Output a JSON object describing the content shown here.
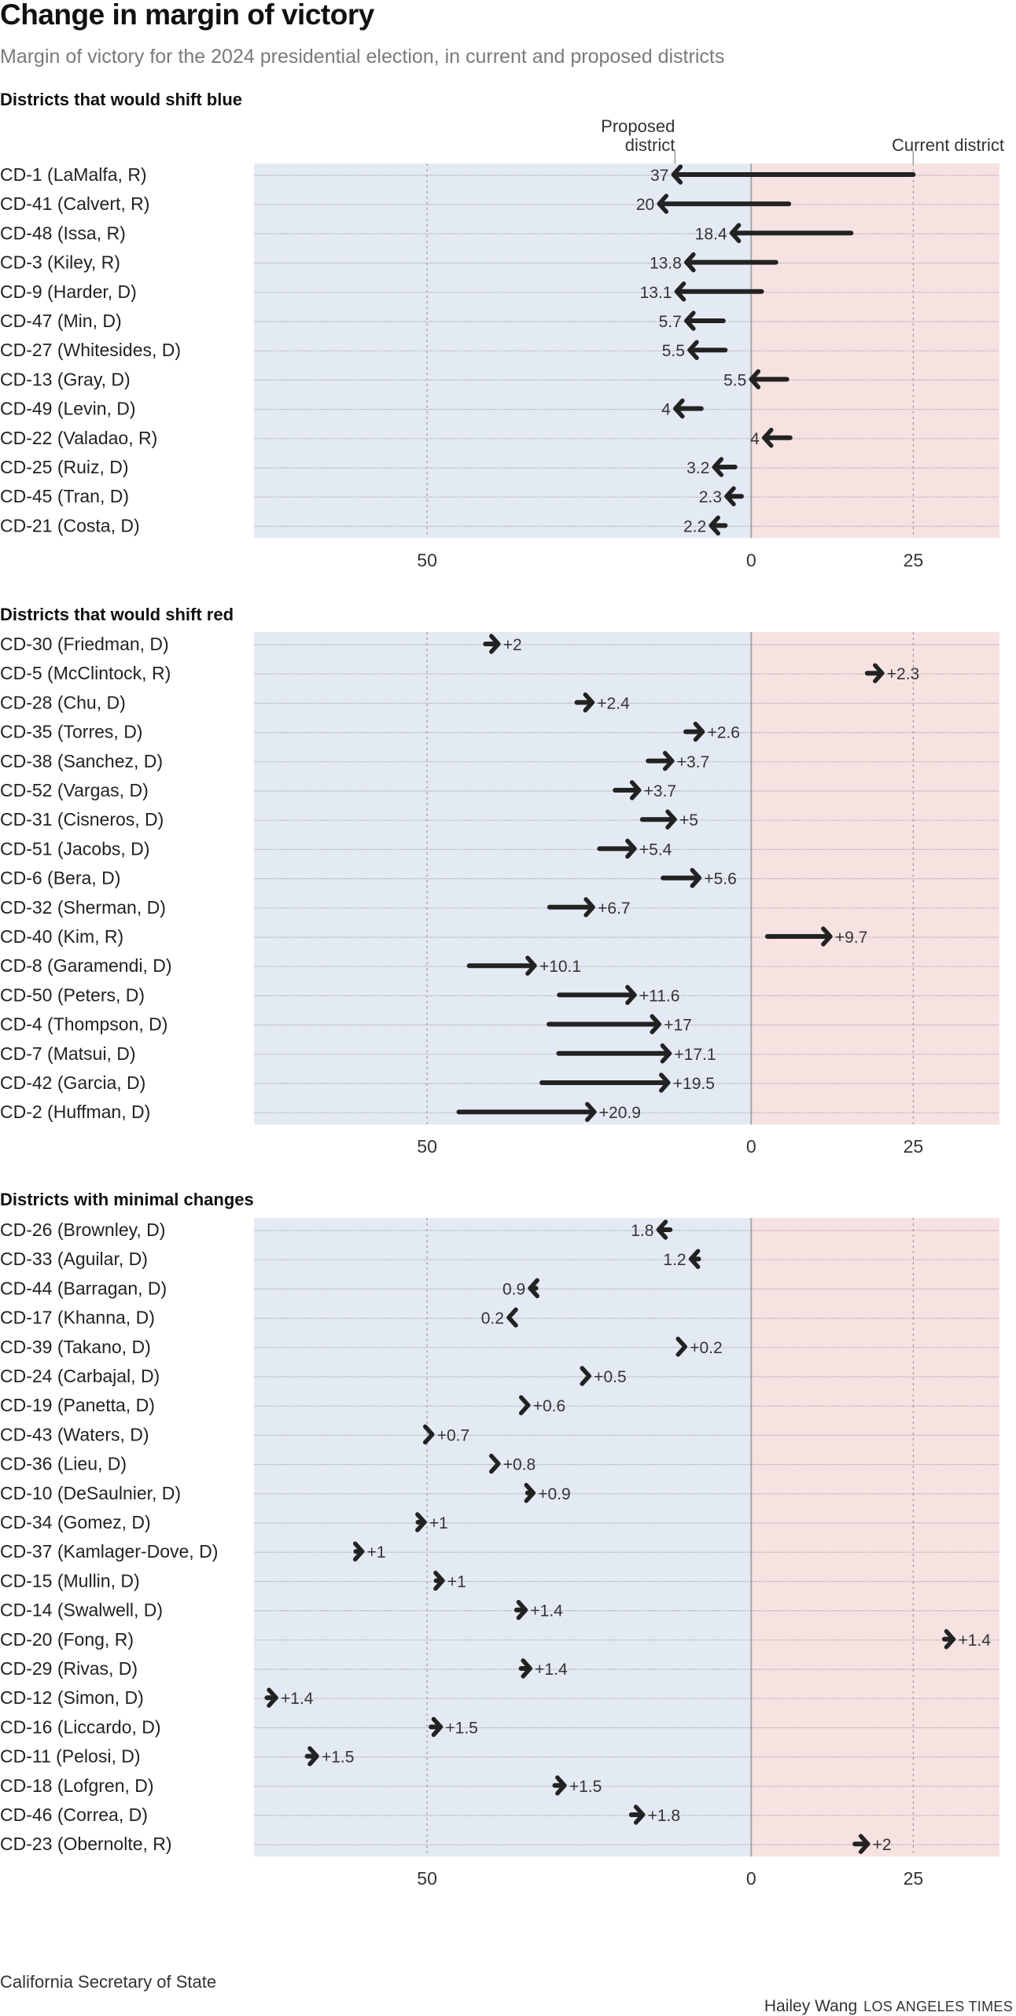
{
  "header": {
    "title": "Change in margin of victory",
    "subtitle": "Margin of victory for the 2024 presidential election, in current and proposed districts"
  },
  "footer": {
    "source": "California Secretary of State",
    "author": "Hailey Wang",
    "organization": "LOS ANGELES TIMES"
  },
  "colors": {
    "democratic_bg": "#e4eaf3",
    "republican_bg": "#f7e2e2",
    "arrow": "#222222",
    "zero_line": "#a8a8a8",
    "gridline": "#9a9a9a"
  },
  "legend": {
    "proposed_label_line1": "Proposed",
    "proposed_label_line2": "district",
    "current_label": "Current district"
  },
  "chart_data": {
    "type": "arrow-dot-plot",
    "title": "Change in margin of victory",
    "subtitle": "Margin of victory for the 2024 presidential election, in current and proposed districts",
    "xlabel": "",
    "value_convention": "signed margin in percentage points; negative = Democratic lead (blue, left), positive = Republican lead (red, right)",
    "xlim": [
      -76.7,
      38.3
    ],
    "x_ticks": [
      {
        "value": -50,
        "label": "50"
      },
      {
        "value": 0,
        "label": "0"
      },
      {
        "value": 25,
        "label": "25"
      }
    ],
    "grid": true,
    "legend_placement": "top of first panel, annotating first arrow",
    "panels": [
      {
        "heading": "Districts that would shift blue",
        "rows": [
          {
            "district": "CD-1 (LaMalfa, R)",
            "current": 25.0,
            "proposed": -12.0,
            "label": "37"
          },
          {
            "district": "CD-41 (Calvert, R)",
            "current": 5.8,
            "proposed": -14.2,
            "label": "20"
          },
          {
            "district": "CD-48 (Issa, R)",
            "current": 15.4,
            "proposed": -3.0,
            "label": "18.4"
          },
          {
            "district": "CD-3 (Kiley, R)",
            "current": 3.8,
            "proposed": -10.0,
            "label": "13.8"
          },
          {
            "district": "CD-9 (Harder, D)",
            "current": 1.6,
            "proposed": -11.5,
            "label": "13.1"
          },
          {
            "district": "CD-47 (Min, D)",
            "current": -4.3,
            "proposed": -10.0,
            "label": "5.7"
          },
          {
            "district": "CD-27 (Whitesides, D)",
            "current": -4.0,
            "proposed": -9.5,
            "label": "5.5"
          },
          {
            "district": "CD-13 (Gray, D)",
            "current": 5.5,
            "proposed": 0.0,
            "label": "5.5"
          },
          {
            "district": "CD-49 (Levin, D)",
            "current": -7.7,
            "proposed": -11.7,
            "label": "4"
          },
          {
            "district": "CD-22 (Valadao, R)",
            "current": 6.0,
            "proposed": 2.0,
            "label": "4"
          },
          {
            "district": "CD-25 (Ruiz, D)",
            "current": -2.5,
            "proposed": -5.7,
            "label": "3.2"
          },
          {
            "district": "CD-45 (Tran, D)",
            "current": -1.5,
            "proposed": -3.8,
            "label": "2.3"
          },
          {
            "district": "CD-21 (Costa, D)",
            "current": -4.0,
            "proposed": -6.2,
            "label": "2.2"
          }
        ]
      },
      {
        "heading": "Districts that would shift red",
        "rows": [
          {
            "district": "CD-30 (Friedman, D)",
            "current": -41.0,
            "proposed": -39.0,
            "label": "+2"
          },
          {
            "district": "CD-5 (McClintock, R)",
            "current": 17.9,
            "proposed": 20.2,
            "label": "+2.3"
          },
          {
            "district": "CD-28 (Chu, D)",
            "current": -26.9,
            "proposed": -24.5,
            "label": "+2.4"
          },
          {
            "district": "CD-35 (Torres, D)",
            "current": -10.1,
            "proposed": -7.5,
            "label": "+2.6"
          },
          {
            "district": "CD-38 (Sanchez, D)",
            "current": -15.9,
            "proposed": -12.2,
            "label": "+3.7"
          },
          {
            "district": "CD-52 (Vargas, D)",
            "current": -21.0,
            "proposed": -17.3,
            "label": "+3.7"
          },
          {
            "district": "CD-31 (Cisneros, D)",
            "current": -16.8,
            "proposed": -11.8,
            "label": "+5"
          },
          {
            "district": "CD-51 (Jacobs, D)",
            "current": -23.4,
            "proposed": -18.0,
            "label": "+5.4"
          },
          {
            "district": "CD-6 (Bera, D)",
            "current": -13.6,
            "proposed": -8.0,
            "label": "+5.6"
          },
          {
            "district": "CD-32 (Sherman, D)",
            "current": -31.1,
            "proposed": -24.4,
            "label": "+6.7"
          },
          {
            "district": "CD-40 (Kim, R)",
            "current": 2.5,
            "proposed": 12.2,
            "label": "+9.7"
          },
          {
            "district": "CD-8 (Garamendi, D)",
            "current": -43.5,
            "proposed": -33.4,
            "label": "+10.1"
          },
          {
            "district": "CD-50 (Peters, D)",
            "current": -29.6,
            "proposed": -18.0,
            "label": "+11.6"
          },
          {
            "district": "CD-4 (Thompson, D)",
            "current": -31.2,
            "proposed": -14.2,
            "label": "+17"
          },
          {
            "district": "CD-7 (Matsui, D)",
            "current": -29.7,
            "proposed": -12.6,
            "label": "+17.1"
          },
          {
            "district": "CD-42 (Garcia, D)",
            "current": -32.3,
            "proposed": -12.8,
            "label": "+19.5"
          },
          {
            "district": "CD-2 (Huffman, D)",
            "current": -45.1,
            "proposed": -24.2,
            "label": "+20.9"
          }
        ]
      },
      {
        "heading": "Districts with minimal changes",
        "rows": [
          {
            "district": "CD-26 (Brownley, D)",
            "current": -12.5,
            "proposed": -14.3,
            "label": "1.8"
          },
          {
            "district": "CD-33 (Aguilar, D)",
            "current": -8.1,
            "proposed": -9.3,
            "label": "1.2"
          },
          {
            "district": "CD-44 (Barragan, D)",
            "current": -33.2,
            "proposed": -34.1,
            "label": "0.9"
          },
          {
            "district": "CD-17 (Khanna, D)",
            "current": -37.2,
            "proposed": -37.4,
            "label": "0.2"
          },
          {
            "district": "CD-39 (Takano, D)",
            "current": -10.4,
            "proposed": -10.2,
            "label": "+0.2"
          },
          {
            "district": "CD-24 (Carbajal, D)",
            "current": -25.5,
            "proposed": -25.0,
            "label": "+0.5"
          },
          {
            "district": "CD-19 (Panetta, D)",
            "current": -35.0,
            "proposed": -34.4,
            "label": "+0.6"
          },
          {
            "district": "CD-43 (Waters, D)",
            "current": -49.9,
            "proposed": -49.2,
            "label": "+0.7"
          },
          {
            "district": "CD-36 (Lieu, D)",
            "current": -39.8,
            "proposed": -39.0,
            "label": "+0.8"
          },
          {
            "district": "CD-10 (DeSaulnier, D)",
            "current": -34.5,
            "proposed": -33.6,
            "label": "+0.9"
          },
          {
            "district": "CD-34 (Gomez, D)",
            "current": -51.4,
            "proposed": -50.4,
            "label": "+1"
          },
          {
            "district": "CD-37 (Kamlager-Dove, D)",
            "current": -61.0,
            "proposed": -60.0,
            "label": "+1"
          },
          {
            "district": "CD-15 (Mullin, D)",
            "current": -48.6,
            "proposed": -47.6,
            "label": "+1"
          },
          {
            "district": "CD-14 (Swalwell, D)",
            "current": -36.2,
            "proposed": -34.8,
            "label": "+1.4"
          },
          {
            "district": "CD-20 (Fong, R)",
            "current": 29.8,
            "proposed": 31.2,
            "label": "+1.4"
          },
          {
            "district": "CD-29 (Rivas, D)",
            "current": -35.5,
            "proposed": -34.1,
            "label": "+1.4"
          },
          {
            "district": "CD-12 (Simon, D)",
            "current": -74.7,
            "proposed": -73.3,
            "label": "+1.4"
          },
          {
            "district": "CD-16 (Liccardo, D)",
            "current": -49.4,
            "proposed": -47.9,
            "label": "+1.5"
          },
          {
            "district": "CD-11 (Pelosi, D)",
            "current": -68.5,
            "proposed": -67.0,
            "label": "+1.5"
          },
          {
            "district": "CD-18 (Lofgren, D)",
            "current": -30.3,
            "proposed": -28.8,
            "label": "+1.5"
          },
          {
            "district": "CD-46 (Correa, D)",
            "current": -18.5,
            "proposed": -16.7,
            "label": "+1.8"
          },
          {
            "district": "CD-23 (Obernolte, R)",
            "current": 16.0,
            "proposed": 18.0,
            "label": "+2"
          }
        ]
      }
    ]
  }
}
